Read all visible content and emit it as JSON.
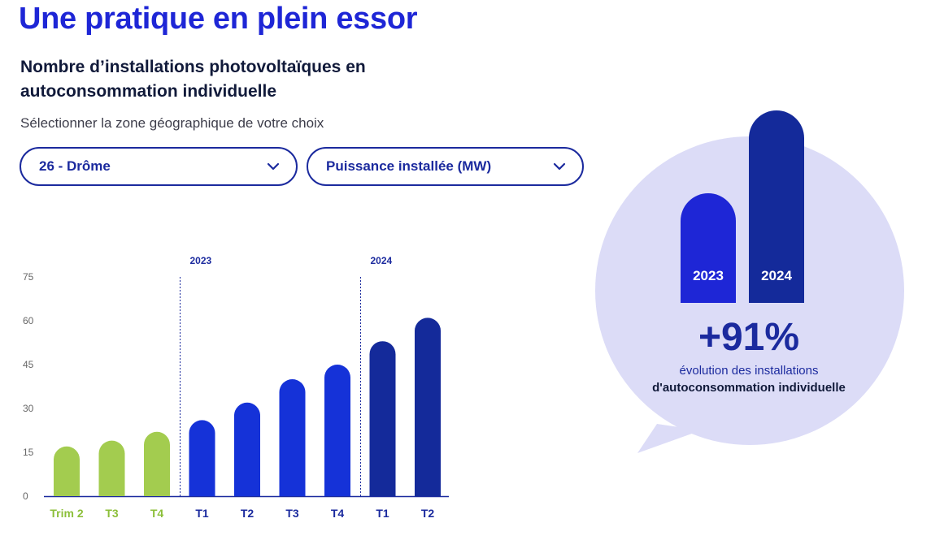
{
  "header": {
    "title": "Une pratique en plein essor",
    "subtitle": "Nombre d’installations photovoltaïques en autoconsommation individuelle",
    "hint": "Sélectionner la zone géographique de votre choix"
  },
  "filters": {
    "zone": {
      "value": "26 - Drôme"
    },
    "metric": {
      "value": "Puissance installée (MW)"
    }
  },
  "colors": {
    "accent": "#1e26d6",
    "dark_blue": "#1b2a9e",
    "green": "#a3cc4f",
    "blue": "#1532d8",
    "navy": "#142a9a",
    "bubble": "#dcdcf7"
  },
  "chart_data": {
    "type": "bar",
    "categories": [
      "Trim 2",
      "T3",
      "T4",
      "T1",
      "T2",
      "T3",
      "T4",
      "T1",
      "T2"
    ],
    "values": [
      17,
      19,
      22,
      26,
      32,
      40,
      45,
      53,
      61
    ],
    "bar_colors": [
      "#a3cc4f",
      "#a3cc4f",
      "#a3cc4f",
      "#1532d8",
      "#1532d8",
      "#1532d8",
      "#1532d8",
      "#142a9a",
      "#142a9a"
    ],
    "year_markers": [
      {
        "label": "2023",
        "before_index": 3
      },
      {
        "label": "2024",
        "before_index": 7
      }
    ],
    "yticks": [
      0,
      15,
      30,
      45,
      60,
      75
    ],
    "ylim": [
      0,
      75
    ]
  },
  "highlight": {
    "year_a": "2023",
    "year_b": "2024",
    "ratio_b_to_a": 1.91,
    "percent": "+91%",
    "desc_line1": "évolution des installations",
    "desc_line2": "d'autoconsommation individuelle"
  }
}
